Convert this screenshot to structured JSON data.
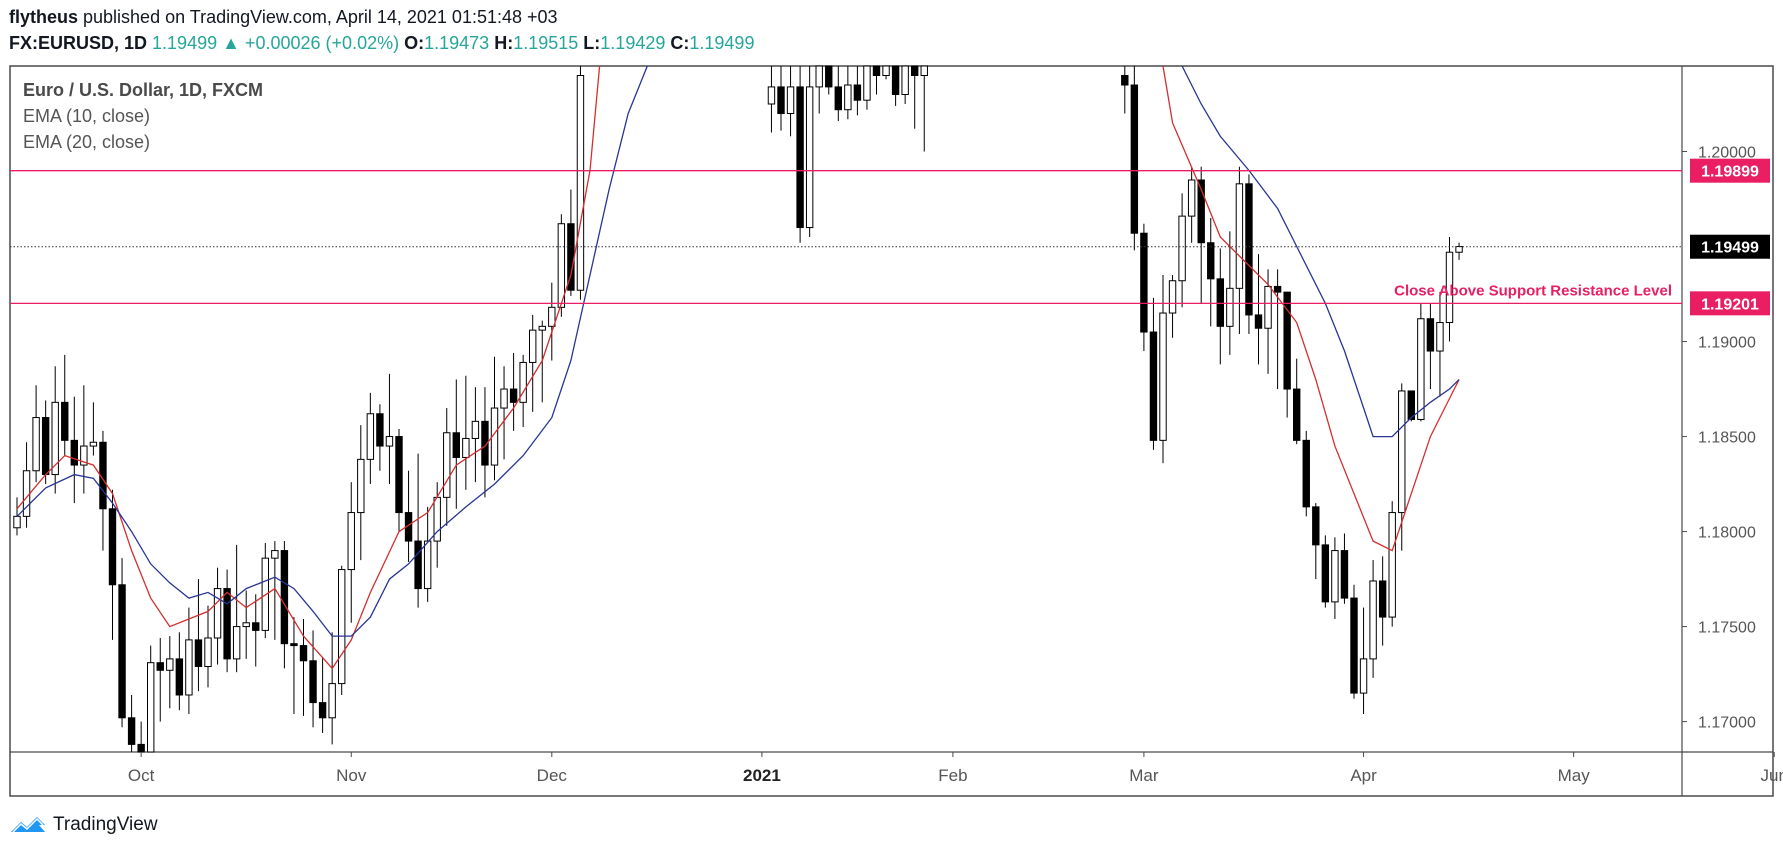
{
  "header": {
    "author": "flytheus",
    "published_text": " published on TradingView.com, April 14, 2021 01:51:48 +03",
    "symbol": "FX:EURUSD, 1D",
    "last": "1.19499",
    "change": "+0.00026 (+0.02%)",
    "open_label": "O:",
    "open": "1.19473",
    "high_label": "H:",
    "high": "1.19515",
    "low_label": "L:",
    "low": "1.19429",
    "close_label": "C:",
    "close": "1.19499"
  },
  "legend": {
    "title": "Euro / U.S. Dollar, 1D, FXCM",
    "ema10": "EMA (10, close)",
    "ema20": "EMA (20, close)"
  },
  "footer": {
    "brand": "TradingView"
  },
  "colors": {
    "ema10": "#d32f2f",
    "ema20": "#283593",
    "hline": "#e91e63",
    "up": "#ffffff",
    "down": "#000000",
    "grid_text": "#555555"
  },
  "chart_data": {
    "type": "candlestick",
    "title": "Euro / U.S. Dollar, 1D, FXCM",
    "ylim": [
      1.1684,
      1.2045
    ],
    "y_ticks": [
      {
        "value": 1.17,
        "label": "1.17000"
      },
      {
        "value": 1.175,
        "label": "1.17500"
      },
      {
        "value": 1.18,
        "label": "1.18000"
      },
      {
        "value": 1.185,
        "label": "1.18500"
      },
      {
        "value": 1.19,
        "label": "1.19000"
      },
      {
        "value": 1.2,
        "label": "1.20000"
      }
    ],
    "x_ticks": [
      {
        "index": 13,
        "label": "Oct",
        "bold": false
      },
      {
        "index": 35,
        "label": "Nov",
        "bold": false
      },
      {
        "index": 56,
        "label": "Dec",
        "bold": false
      },
      {
        "index": 78,
        "label": "2021",
        "bold": true
      },
      {
        "index": 98,
        "label": "Feb",
        "bold": false
      },
      {
        "index": 118,
        "label": "Mar",
        "bold": false
      },
      {
        "index": 141,
        "label": "Apr",
        "bold": false
      },
      {
        "index": 163,
        "label": "May",
        "bold": false
      },
      {
        "index": 184,
        "label": "Jun",
        "bold": false
      }
    ],
    "horizontal_levels": [
      {
        "value": 1.19899,
        "label": "1.19899"
      },
      {
        "value": 1.19201,
        "label": "1.19201",
        "annotation": "Close Above Support Resistance Level"
      }
    ],
    "last_price": {
      "value": 1.19499,
      "label": "1.19499"
    },
    "candles": [
      [
        1.1802,
        1.1808,
        1.1798,
        1.1818
      ],
      [
        1.1808,
        1.1832,
        1.1802,
        1.1847
      ],
      [
        1.1832,
        1.186,
        1.1826,
        1.1877
      ],
      [
        1.186,
        1.183,
        1.1825,
        1.1869
      ],
      [
        1.183,
        1.1868,
        1.182,
        1.1887
      ],
      [
        1.1868,
        1.1848,
        1.184,
        1.1893
      ],
      [
        1.1848,
        1.1835,
        1.1815,
        1.1871
      ],
      [
        1.1835,
        1.1845,
        1.182,
        1.1877
      ],
      [
        1.1845,
        1.1847,
        1.184,
        1.1868
      ],
      [
        1.1847,
        1.1812,
        1.179,
        1.1853
      ],
      [
        1.1812,
        1.1772,
        1.1743,
        1.1822
      ],
      [
        1.1772,
        1.1702,
        1.1697,
        1.1786
      ],
      [
        1.1702,
        1.1688,
        1.1684,
        1.1714
      ],
      [
        1.1688,
        1.1684,
        1.1684,
        1.17
      ],
      [
        1.1684,
        1.1731,
        1.1684,
        1.174
      ],
      [
        1.1731,
        1.1727,
        1.17,
        1.1744
      ],
      [
        1.1727,
        1.1733,
        1.1707,
        1.1745
      ],
      [
        1.1733,
        1.1714,
        1.1706,
        1.1747
      ],
      [
        1.1714,
        1.1743,
        1.1704,
        1.176
      ],
      [
        1.1743,
        1.1729,
        1.1716,
        1.1775
      ],
      [
        1.1729,
        1.1744,
        1.1718,
        1.1761
      ],
      [
        1.1744,
        1.177,
        1.173,
        1.1781
      ],
      [
        1.177,
        1.1733,
        1.1726,
        1.178
      ],
      [
        1.1733,
        1.175,
        1.1726,
        1.1793
      ],
      [
        1.175,
        1.1752,
        1.1733,
        1.1769
      ],
      [
        1.1752,
        1.1748,
        1.1729,
        1.1767
      ],
      [
        1.1748,
        1.1786,
        1.1744,
        1.1794
      ],
      [
        1.1786,
        1.179,
        1.1743,
        1.1795
      ],
      [
        1.179,
        1.1741,
        1.1728,
        1.1795
      ],
      [
        1.1741,
        1.174,
        1.1704,
        1.1755
      ],
      [
        1.174,
        1.1732,
        1.1703,
        1.1754
      ],
      [
        1.1732,
        1.171,
        1.1697,
        1.1748
      ],
      [
        1.171,
        1.1702,
        1.1694,
        1.1734
      ],
      [
        1.1702,
        1.172,
        1.1688,
        1.1747
      ],
      [
        1.172,
        1.178,
        1.1714,
        1.1782
      ],
      [
        1.178,
        1.181,
        1.1752,
        1.1826
      ],
      [
        1.181,
        1.1838,
        1.1785,
        1.1856
      ],
      [
        1.1838,
        1.1862,
        1.1825,
        1.1873
      ],
      [
        1.1862,
        1.1845,
        1.1832,
        1.1867
      ],
      [
        1.1845,
        1.185,
        1.1825,
        1.1883
      ],
      [
        1.185,
        1.181,
        1.18,
        1.1854
      ],
      [
        1.181,
        1.1795,
        1.1784,
        1.1832
      ],
      [
        1.1795,
        1.177,
        1.176,
        1.1841
      ],
      [
        1.177,
        1.1795,
        1.1763,
        1.1813
      ],
      [
        1.1795,
        1.1818,
        1.1781,
        1.1826
      ],
      [
        1.1818,
        1.1852,
        1.1803,
        1.1865
      ],
      [
        1.1852,
        1.1839,
        1.1812,
        1.188
      ],
      [
        1.1839,
        1.1849,
        1.1822,
        1.1882
      ],
      [
        1.1849,
        1.1858,
        1.1826,
        1.1876
      ],
      [
        1.1858,
        1.1835,
        1.1818,
        1.1876
      ],
      [
        1.1835,
        1.1865,
        1.1827,
        1.1892
      ],
      [
        1.1865,
        1.1875,
        1.1838,
        1.1887
      ],
      [
        1.1875,
        1.1868,
        1.1853,
        1.1894
      ],
      [
        1.1868,
        1.1889,
        1.1855,
        1.1893
      ],
      [
        1.1889,
        1.1906,
        1.1863,
        1.1914
      ],
      [
        1.1906,
        1.1908,
        1.1868,
        1.1911
      ],
      [
        1.1908,
        1.1918,
        1.189,
        1.1931
      ],
      [
        1.1918,
        1.1962,
        1.1913,
        1.1967
      ],
      [
        1.1962,
        1.1927,
        1.1924,
        1.198
      ],
      [
        1.1927,
        1.204,
        1.1922,
        1.2045
      ]
    ],
    "candles_2": [
      [
        1.2025,
        1.2034,
        1.201,
        1.2045
      ],
      [
        1.2034,
        1.202,
        1.2011,
        1.2045
      ],
      [
        1.202,
        1.2034,
        1.2008,
        1.2045
      ],
      [
        1.2034,
        1.196,
        1.1952,
        1.2045
      ],
      [
        1.196,
        1.2034,
        1.1955,
        1.2045
      ],
      [
        1.2034,
        1.2045,
        1.202,
        1.2045
      ],
      [
        1.2045,
        1.2034,
        1.203,
        1.2045
      ],
      [
        1.2034,
        1.2022,
        1.2016,
        1.2045
      ],
      [
        1.2022,
        1.2035,
        1.2017,
        1.2045
      ],
      [
        1.2035,
        1.2027,
        1.2019,
        1.2045
      ],
      [
        1.2027,
        1.2045,
        1.2022,
        1.2045
      ],
      [
        1.2045,
        1.204,
        1.203,
        1.2045
      ],
      [
        1.204,
        1.2045,
        1.2038,
        1.2045
      ],
      [
        1.2045,
        1.203,
        1.2024,
        1.2045
      ],
      [
        1.203,
        1.2045,
        1.2025,
        1.2045
      ],
      [
        1.2045,
        1.204,
        1.2012,
        1.2045
      ],
      [
        1.204,
        1.2045,
        1.2,
        1.2045
      ]
    ],
    "candles_3": [
      [
        1.204,
        1.2035,
        1.202,
        1.2045
      ],
      [
        1.2035,
        1.1957,
        1.1948,
        1.2045
      ],
      [
        1.1957,
        1.1905,
        1.1895,
        1.1962
      ],
      [
        1.1905,
        1.1848,
        1.1843,
        1.1923
      ],
      [
        1.1848,
        1.1915,
        1.1836,
        1.1935
      ],
      [
        1.1915,
        1.1932,
        1.1902,
        1.1935
      ],
      [
        1.1932,
        1.1966,
        1.1918,
        1.1978
      ],
      [
        1.1966,
        1.1985,
        1.1952,
        1.1992
      ],
      [
        1.1985,
        1.1952,
        1.192,
        1.1992
      ],
      [
        1.1952,
        1.1933,
        1.1908,
        1.1965
      ],
      [
        1.1933,
        1.1908,
        1.1888,
        1.1949
      ],
      [
        1.1908,
        1.1928,
        1.1893,
        1.1958
      ],
      [
        1.1928,
        1.1983,
        1.1904,
        1.1992
      ],
      [
        1.1983,
        1.1914,
        1.1904,
        1.1988
      ],
      [
        1.1914,
        1.1907,
        1.1888,
        1.1946
      ],
      [
        1.1907,
        1.1929,
        1.1883,
        1.1938
      ],
      [
        1.1929,
        1.1926,
        1.1875,
        1.1938
      ],
      [
        1.1926,
        1.1875,
        1.186,
        1.1926
      ],
      [
        1.1875,
        1.1848,
        1.1846,
        1.1891
      ],
      [
        1.1848,
        1.1813,
        1.1808,
        1.1853
      ],
      [
        1.1813,
        1.1793,
        1.1775,
        1.1815
      ],
      [
        1.1793,
        1.1763,
        1.176,
        1.1798
      ],
      [
        1.1763,
        1.179,
        1.1754,
        1.1797
      ],
      [
        1.179,
        1.1765,
        1.1762,
        1.1799
      ],
      [
        1.1765,
        1.1715,
        1.1712,
        1.1772
      ],
      [
        1.1715,
        1.1733,
        1.1704,
        1.176
      ],
      [
        1.1733,
        1.1774,
        1.1723,
        1.1785
      ],
      [
        1.1774,
        1.1755,
        1.174,
        1.1787
      ],
      [
        1.1755,
        1.181,
        1.175,
        1.1816
      ],
      [
        1.181,
        1.1874,
        1.179,
        1.1878
      ],
      [
        1.1874,
        1.1859,
        1.1858,
        1.1874
      ],
      [
        1.1859,
        1.1912,
        1.1858,
        1.192
      ],
      [
        1.1912,
        1.1895,
        1.1875,
        1.192
      ],
      [
        1.1895,
        1.191,
        1.1871,
        1.1926
      ],
      [
        1.191,
        1.1947,
        1.19,
        1.1955
      ],
      [
        1.1947,
        1.195,
        1.1943,
        1.1952
      ]
    ],
    "ema10": [
      [
        0,
        1.1812
      ],
      [
        3,
        1.183
      ],
      [
        5,
        1.184
      ],
      [
        8,
        1.1835
      ],
      [
        10,
        1.182
      ],
      [
        12,
        1.179
      ],
      [
        14,
        1.1765
      ],
      [
        16,
        1.175
      ],
      [
        20,
        1.1758
      ],
      [
        22,
        1.1768
      ],
      [
        24,
        1.176
      ],
      [
        27,
        1.177
      ],
      [
        30,
        1.1745
      ],
      [
        33,
        1.1728
      ],
      [
        35,
        1.1743
      ],
      [
        37,
        1.1768
      ],
      [
        40,
        1.18
      ],
      [
        43,
        1.181
      ],
      [
        46,
        1.1835
      ],
      [
        49,
        1.1845
      ],
      [
        52,
        1.1865
      ],
      [
        55,
        1.189
      ],
      [
        58,
        1.1935
      ],
      [
        60,
        1.199
      ],
      [
        61,
        1.2045
      ],
      [
        120,
        1.2045
      ],
      [
        121,
        1.2015
      ],
      [
        124,
        1.198
      ],
      [
        126,
        1.1955
      ],
      [
        128,
        1.1945
      ],
      [
        131,
        1.193
      ],
      [
        134,
        1.191
      ],
      [
        136,
        1.188
      ],
      [
        138,
        1.1845
      ],
      [
        140,
        1.182
      ],
      [
        142,
        1.1795
      ],
      [
        144,
        1.179
      ],
      [
        146,
        1.182
      ],
      [
        148,
        1.185
      ],
      [
        150,
        1.187
      ],
      [
        151,
        1.188
      ]
    ],
    "ema20": [
      [
        0,
        1.1808
      ],
      [
        3,
        1.1823
      ],
      [
        6,
        1.183
      ],
      [
        8,
        1.1828
      ],
      [
        10,
        1.1815
      ],
      [
        12,
        1.18
      ],
      [
        14,
        1.1783
      ],
      [
        16,
        1.1773
      ],
      [
        18,
        1.1765
      ],
      [
        20,
        1.1768
      ],
      [
        22,
        1.1762
      ],
      [
        24,
        1.177
      ],
      [
        27,
        1.1776
      ],
      [
        29,
        1.177
      ],
      [
        31,
        1.1758
      ],
      [
        33,
        1.1745
      ],
      [
        35,
        1.1745
      ],
      [
        37,
        1.1755
      ],
      [
        39,
        1.1775
      ],
      [
        41,
        1.1783
      ],
      [
        44,
        1.18
      ],
      [
        47,
        1.1813
      ],
      [
        50,
        1.1825
      ],
      [
        53,
        1.184
      ],
      [
        56,
        1.186
      ],
      [
        58,
        1.189
      ],
      [
        60,
        1.1935
      ],
      [
        62,
        1.198
      ],
      [
        64,
        1.202
      ],
      [
        66,
        1.2045
      ],
      [
        122,
        1.2045
      ],
      [
        124,
        1.2025
      ],
      [
        126,
        1.2008
      ],
      [
        129,
        1.199
      ],
      [
        132,
        1.197
      ],
      [
        134,
        1.195
      ],
      [
        137,
        1.192
      ],
      [
        139,
        1.1895
      ],
      [
        141,
        1.1865
      ],
      [
        142,
        1.185
      ],
      [
        144,
        1.185
      ],
      [
        146,
        1.186
      ],
      [
        148,
        1.1868
      ],
      [
        150,
        1.1875
      ],
      [
        151,
        1.188
      ]
    ]
  }
}
